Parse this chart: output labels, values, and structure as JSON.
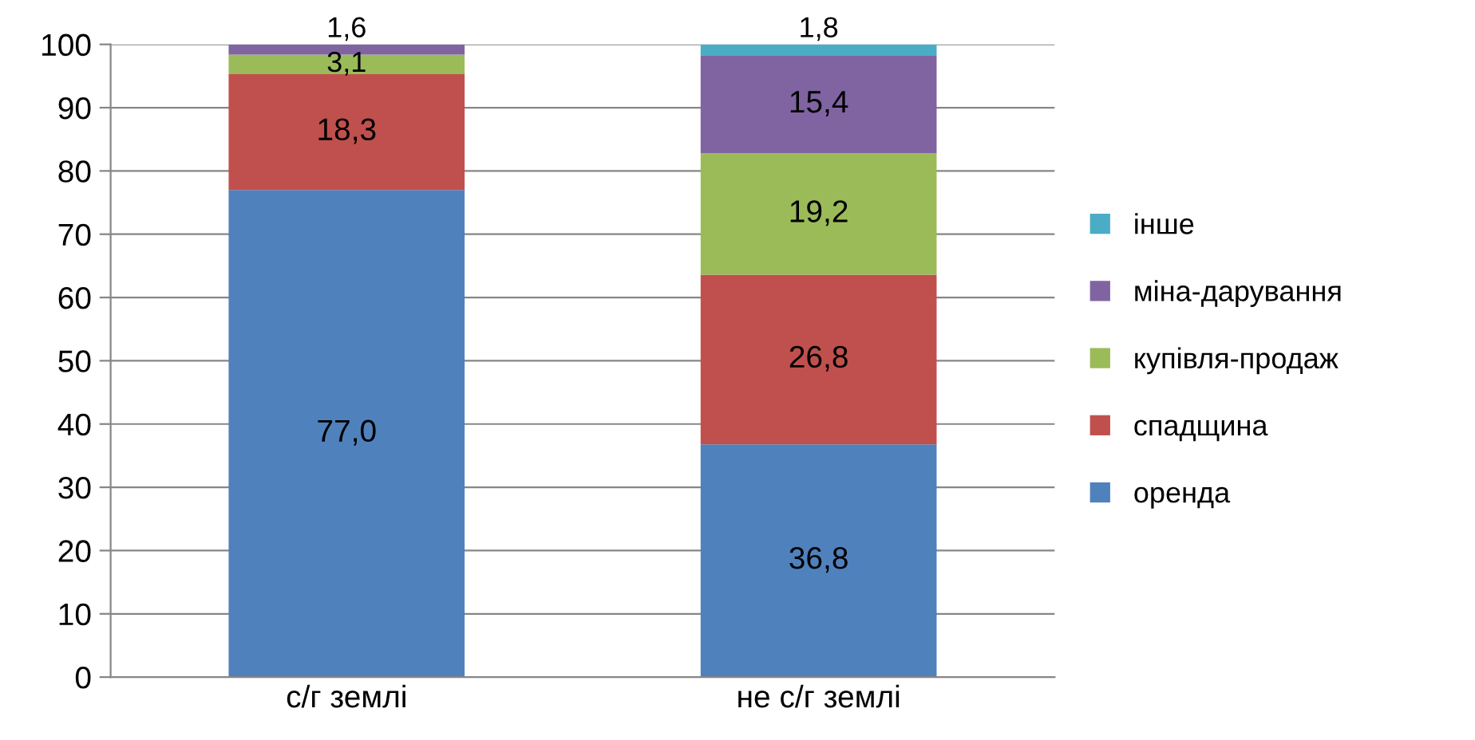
{
  "chart_data": {
    "type": "bar",
    "stacked": true,
    "categories": [
      "с/г землі",
      "не с/г землі"
    ],
    "series": [
      {
        "name": "оренда",
        "color": "#4f81bd",
        "values": [
          77.0,
          36.8
        ],
        "value_labels": [
          "77,0",
          "36,8"
        ]
      },
      {
        "name": "спадщина",
        "color": "#c0504d",
        "values": [
          18.3,
          26.8
        ],
        "value_labels": [
          "18,3",
          "26,8"
        ]
      },
      {
        "name": "купівля-продаж",
        "color": "#9bbb59",
        "values": [
          3.1,
          19.2
        ],
        "value_labels": [
          "3,1",
          "19,2"
        ]
      },
      {
        "name": "міна-дарування",
        "color": "#8064a2",
        "values": [
          1.6,
          15.4
        ],
        "value_labels": [
          "1,6",
          "15,4"
        ]
      },
      {
        "name": "інше",
        "color": "#4bacc6",
        "values": [
          null,
          1.8
        ],
        "value_labels": [
          null,
          "1,8"
        ]
      }
    ],
    "ylim": [
      0,
      100
    ],
    "yticks": [
      0,
      10,
      20,
      30,
      40,
      50,
      60,
      70,
      80,
      90,
      100
    ],
    "grid": "y",
    "legend": "right"
  }
}
